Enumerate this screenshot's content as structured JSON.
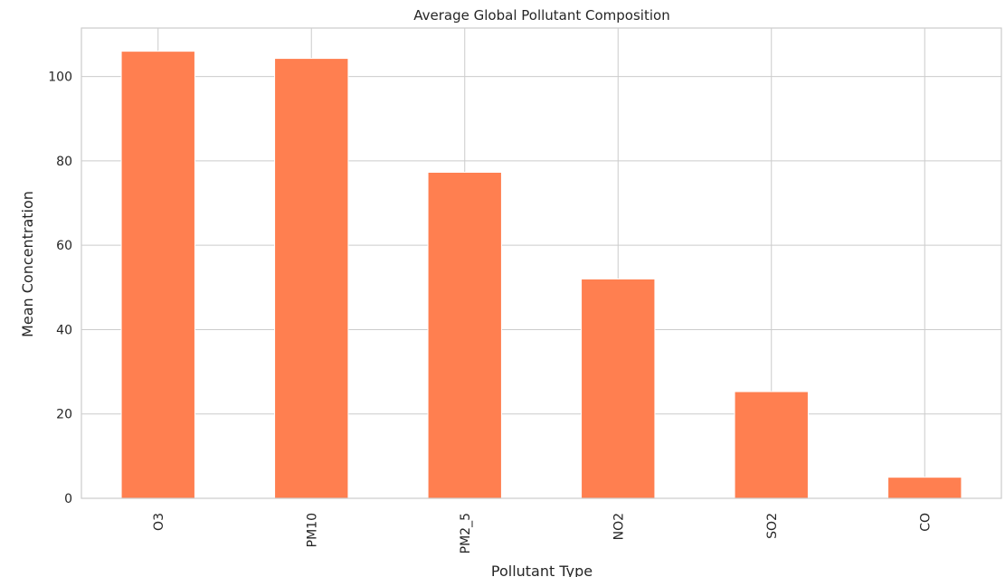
{
  "chart_data": {
    "type": "bar",
    "title": "Average Global Pollutant Composition",
    "xlabel": "Pollutant Type",
    "ylabel": "Mean Concentration",
    "categories": [
      "O3",
      "PM10",
      "PM2_5",
      "NO2",
      "SO2",
      "CO"
    ],
    "values": [
      106.0,
      104.3,
      77.3,
      52.0,
      25.3,
      5.0
    ],
    "ylim": [
      0,
      111.5
    ],
    "yticks": [
      0,
      20,
      40,
      60,
      80,
      100
    ],
    "grid": true,
    "bar_color": "#ff7f50",
    "grid_color": "#cccccc"
  }
}
